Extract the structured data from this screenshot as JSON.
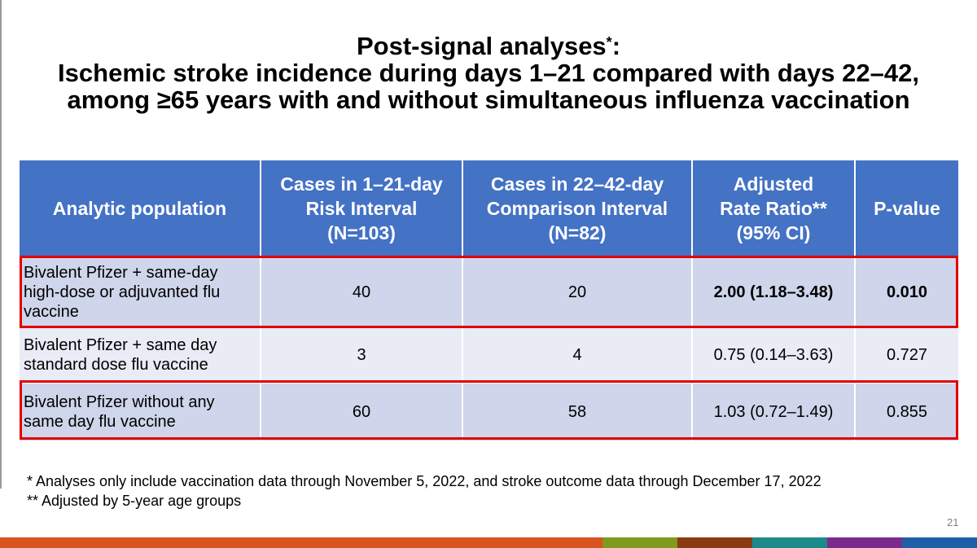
{
  "title": {
    "line1": "Post-signal analyses",
    "line1_mark": "*",
    "line1_colon": ":",
    "line2": "Ischemic stroke incidence during days 1–21 compared with days 22–42,",
    "line3": "among ≥65 years with and without simultaneous influenza vaccination"
  },
  "table": {
    "headers": [
      [
        "Analytic population"
      ],
      [
        "Cases in 1–21-day",
        "Risk Interval",
        "(N=103)"
      ],
      [
        "Cases in 22–42-day",
        "Comparison Interval",
        "(N=82)"
      ],
      [
        "Adjusted",
        "Rate Ratio**",
        "(95% CI)"
      ],
      [
        "P-value"
      ]
    ],
    "rows": [
      {
        "population": [
          "Bivalent Pfizer + same-day",
          "high-dose or adjuvanted flu",
          "vaccine"
        ],
        "cases_risk": "40",
        "cases_comparison": "20",
        "rate_ratio": "2.00 (1.18–3.48)",
        "p_value": "0.010"
      },
      {
        "population": [
          "Bivalent Pfizer + same day",
          "standard dose flu vaccine"
        ],
        "cases_risk": "3",
        "cases_comparison": "4",
        "rate_ratio": "0.75 (0.14–3.63)",
        "p_value": "0.727"
      },
      {
        "population": [
          "Bivalent Pfizer without any",
          "same day flu vaccine"
        ],
        "cases_risk": "60",
        "cases_comparison": "58",
        "rate_ratio": "1.03 (0.72–1.49)",
        "p_value": "0.855"
      }
    ]
  },
  "footnotes": [
    "* Analyses only include vaccination data through November 5, 2022, and stroke outcome data through December 17, 2022",
    "** Adjusted by 5-year age groups"
  ],
  "page_number": "21",
  "colors": {
    "header_blue": "#4472c4",
    "row_shade_dark": "#cfd5ea",
    "row_shade_light": "#e9ebf5",
    "highlight_red": "#e00000",
    "footer_bar": [
      "#d9531e",
      "#7f9a1c",
      "#8a3b12",
      "#1c8a8a",
      "#7b2a8c",
      "#1e5fa8"
    ]
  }
}
